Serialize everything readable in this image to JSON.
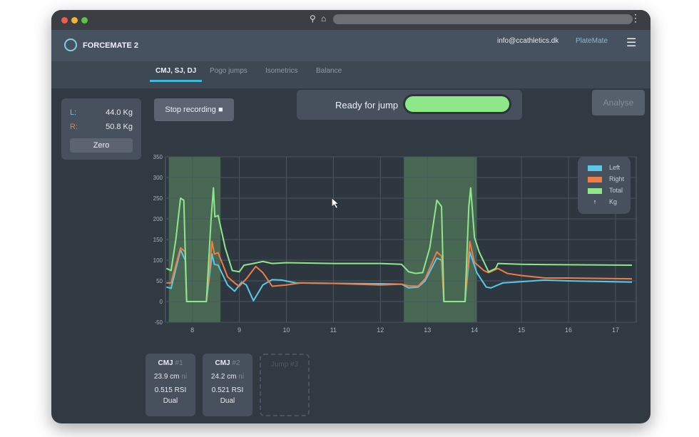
{
  "window": {
    "controls": [
      "close",
      "minimize",
      "maximize"
    ]
  },
  "header": {
    "brand": "FORCEMATE 2",
    "email": "info@ccathletics.dk",
    "product": "PlateMate"
  },
  "tabs": [
    {
      "label": "CMJ, SJ, DJ",
      "active": true
    },
    {
      "label": "Pogo jumps"
    },
    {
      "label": "Isometrics"
    },
    {
      "label": "Balance"
    }
  ],
  "scale": {
    "left_label": "L:",
    "left_value": "44.0 Kg",
    "right_label": "R:",
    "right_value": "50.8 Kg",
    "zero_label": "Zero"
  },
  "controls": {
    "stop_label": "Stop recording",
    "status": "Ready for jump",
    "status_progress": 1.0,
    "analyse_label": "Analyse"
  },
  "colors": {
    "left": "#5cc8e8",
    "right": "#ef7d45",
    "total": "#8ee88a",
    "accent": "#3fb8d8"
  },
  "chart_data": {
    "type": "line",
    "xlim": [
      7.43,
      17.44
    ],
    "ylim": [
      -50,
      350
    ],
    "xticks": [
      8,
      9,
      10,
      11,
      12,
      13,
      14,
      15,
      16,
      17
    ],
    "yticks": [
      350,
      300,
      250,
      200,
      150,
      100,
      50,
      0,
      -50
    ],
    "grid": true,
    "legend": "top-right",
    "legend_unit": "Kg",
    "highlight_ranges": [
      [
        7.5,
        8.6
      ],
      [
        12.5,
        14.05
      ]
    ],
    "series": [
      {
        "name": "Left",
        "color": "#5cc8e8",
        "points": [
          [
            7.45,
            35
          ],
          [
            7.55,
            32
          ],
          [
            7.75,
            125
          ],
          [
            7.85,
            100
          ],
          [
            7.88,
            0
          ],
          [
            8.3,
            0
          ],
          [
            8.42,
            115
          ],
          [
            8.47,
            90
          ],
          [
            8.55,
            88
          ],
          [
            8.75,
            40
          ],
          [
            8.9,
            25
          ],
          [
            9.05,
            47
          ],
          [
            9.15,
            40
          ],
          [
            9.3,
            2
          ],
          [
            9.5,
            40
          ],
          [
            9.7,
            53
          ],
          [
            9.9,
            52
          ],
          [
            10.2,
            45
          ],
          [
            11,
            44
          ],
          [
            12,
            43
          ],
          [
            12.45,
            42
          ],
          [
            12.6,
            33
          ],
          [
            12.8,
            35
          ],
          [
            12.95,
            50
          ],
          [
            13.2,
            105
          ],
          [
            13.3,
            100
          ],
          [
            13.35,
            0
          ],
          [
            13.8,
            0
          ],
          [
            13.9,
            120
          ],
          [
            14.05,
            70
          ],
          [
            14.25,
            35
          ],
          [
            14.35,
            33
          ],
          [
            14.6,
            45
          ],
          [
            15,
            48
          ],
          [
            15.5,
            52
          ],
          [
            16,
            50
          ],
          [
            17.35,
            47
          ]
        ]
      },
      {
        "name": "Right",
        "color": "#ef7d45",
        "points": [
          [
            7.45,
            45
          ],
          [
            7.55,
            45
          ],
          [
            7.75,
            130
          ],
          [
            7.85,
            120
          ],
          [
            7.88,
            0
          ],
          [
            8.3,
            0
          ],
          [
            8.42,
            145
          ],
          [
            8.47,
            115
          ],
          [
            8.55,
            118
          ],
          [
            8.75,
            60
          ],
          [
            8.9,
            45
          ],
          [
            9.0,
            37
          ],
          [
            9.15,
            55
          ],
          [
            9.35,
            85
          ],
          [
            9.5,
            70
          ],
          [
            9.7,
            37
          ],
          [
            10,
            40
          ],
          [
            10.3,
            45
          ],
          [
            11,
            44
          ],
          [
            12,
            40
          ],
          [
            12.45,
            42
          ],
          [
            12.6,
            38
          ],
          [
            12.8,
            37
          ],
          [
            12.95,
            55
          ],
          [
            13.2,
            120
          ],
          [
            13.3,
            110
          ],
          [
            13.35,
            0
          ],
          [
            13.8,
            0
          ],
          [
            13.9,
            145
          ],
          [
            14.0,
            95
          ],
          [
            14.2,
            75
          ],
          [
            14.3,
            70
          ],
          [
            14.5,
            80
          ],
          [
            14.7,
            68
          ],
          [
            15,
            63
          ],
          [
            15.5,
            57
          ],
          [
            16,
            57
          ],
          [
            17.35,
            55
          ]
        ]
      },
      {
        "name": "Total",
        "color": "#8ee88a",
        "points": [
          [
            7.45,
            80
          ],
          [
            7.55,
            75
          ],
          [
            7.65,
            150
          ],
          [
            7.75,
            250
          ],
          [
            7.82,
            245
          ],
          [
            7.88,
            0
          ],
          [
            8.3,
            0
          ],
          [
            8.4,
            200
          ],
          [
            8.45,
            275
          ],
          [
            8.48,
            205
          ],
          [
            8.55,
            208
          ],
          [
            8.7,
            130
          ],
          [
            8.85,
            75
          ],
          [
            9.0,
            72
          ],
          [
            9.1,
            88
          ],
          [
            9.3,
            92
          ],
          [
            9.5,
            97
          ],
          [
            9.7,
            92
          ],
          [
            10,
            94
          ],
          [
            11,
            92
          ],
          [
            12,
            92
          ],
          [
            12.45,
            90
          ],
          [
            12.6,
            72
          ],
          [
            12.75,
            68
          ],
          [
            12.9,
            70
          ],
          [
            13.05,
            130
          ],
          [
            13.2,
            245
          ],
          [
            13.3,
            230
          ],
          [
            13.35,
            0
          ],
          [
            13.8,
            0
          ],
          [
            13.88,
            230
          ],
          [
            13.92,
            275
          ],
          [
            14,
            155
          ],
          [
            14.1,
            120
          ],
          [
            14.3,
            72
          ],
          [
            14.45,
            80
          ],
          [
            14.5,
            92
          ],
          [
            15,
            90
          ],
          [
            16,
            89
          ],
          [
            17.35,
            88
          ]
        ]
      }
    ]
  },
  "jumps": [
    {
      "title": "CMJ",
      "num": "#1",
      "height": "23.9 cm",
      "ni": "ni",
      "rsi": "0.515",
      "rsi_label": "RSI",
      "mode": "Dual"
    },
    {
      "title": "CMJ",
      "num": "#2",
      "height": "24.2 cm",
      "ni": "ni",
      "rsi": "0.521",
      "rsi_label": "RSI",
      "mode": "Dual"
    }
  ],
  "jump_placeholder": "Jump #3"
}
